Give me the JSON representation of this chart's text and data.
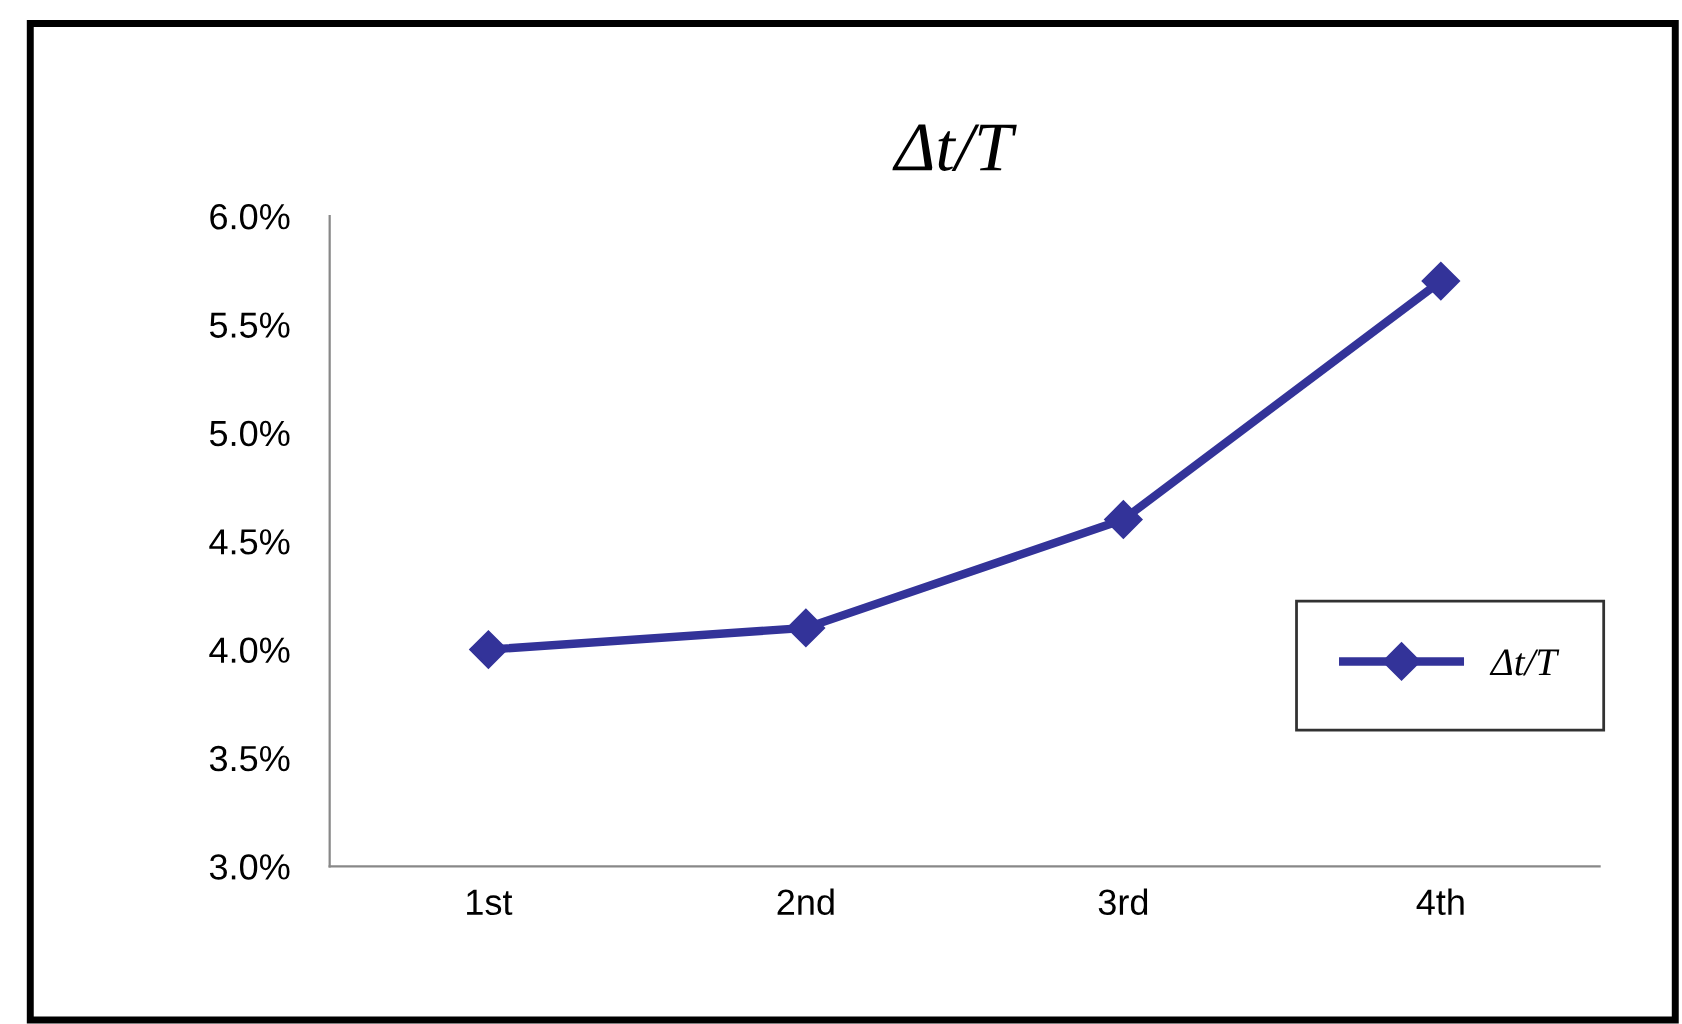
{
  "chart_data": {
    "type": "line",
    "title": "Δt/T",
    "categories": [
      "1st",
      "2nd",
      "3rd",
      "4th"
    ],
    "series": [
      {
        "name": "Δt/T",
        "color": "#333399",
        "values": [
          4.0,
          4.1,
          4.6,
          5.7
        ]
      }
    ],
    "ylim": [
      3.0,
      6.0
    ],
    "yticks": [
      {
        "value": 3.0,
        "label": "3.0%"
      },
      {
        "value": 3.5,
        "label": "3.5%"
      },
      {
        "value": 4.0,
        "label": "4.0%"
      },
      {
        "value": 4.5,
        "label": "4.5%"
      },
      {
        "value": 5.0,
        "label": "5.0%"
      },
      {
        "value": 5.5,
        "label": "5.5%"
      },
      {
        "value": 6.0,
        "label": "6.0%"
      }
    ],
    "grid": false,
    "legend": "right",
    "marker": "diamond",
    "line_style": "solid"
  }
}
